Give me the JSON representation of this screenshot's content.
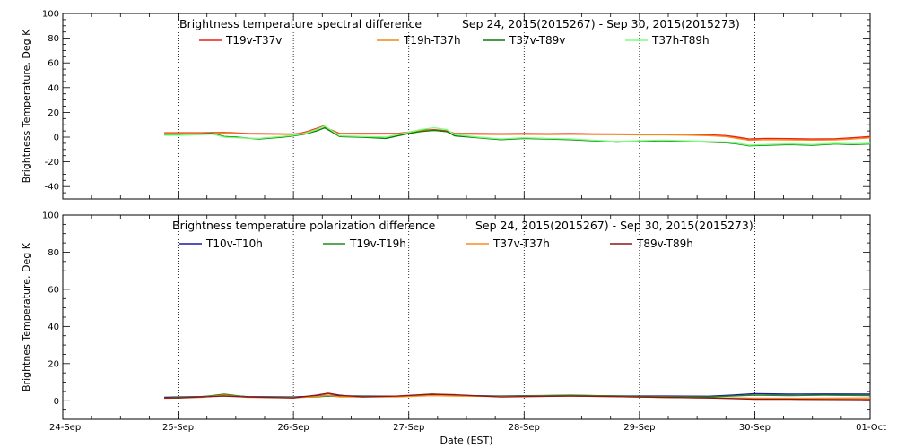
{
  "chart_data": [
    {
      "type": "line",
      "title": "Brightness temperature spectral difference",
      "date_range": "Sep 24, 2015(2015267) - Sep 30, 2015(2015273)",
      "ylabel": "Brightness Temperature, Deg K",
      "xlabel": "",
      "xlim": [
        "2015-09-24",
        "2015-10-01"
      ],
      "ylim": [
        -50,
        100
      ],
      "yticks": [
        "-40",
        "-20",
        "0",
        "20",
        "40",
        "60",
        "80",
        "100"
      ],
      "ytick_values": [
        -40,
        -20,
        0,
        20,
        40,
        60,
        80,
        100
      ],
      "grid": "vertical dotted at days",
      "legend": "top",
      "series": [
        {
          "name": "T19v-T37v",
          "color": "#e8201a",
          "x": [
            0.88,
            1.0,
            1.2,
            1.4,
            1.6,
            2.0,
            2.05,
            2.12,
            2.2,
            2.26,
            2.32,
            2.4,
            2.6,
            2.9,
            3.0,
            3.1,
            3.22,
            3.33,
            3.4,
            3.6,
            3.8,
            4.0,
            4.2,
            4.4,
            4.6,
            4.8,
            5.0,
            5.2,
            5.4,
            5.6,
            5.75,
            5.85,
            5.95,
            6.1,
            6.3,
            6.5,
            6.7,
            6.85,
            7.0
          ],
          "y": [
            3.5,
            3.5,
            3.5,
            3.8,
            3,
            2.5,
            3,
            4.5,
            7,
            9,
            6,
            3,
            3,
            3,
            4,
            5.5,
            6,
            5,
            3,
            2.8,
            2.7,
            2.8,
            2.7,
            2.8,
            2.6,
            2.5,
            2.4,
            2.4,
            2.2,
            1.8,
            1.2,
            0,
            -1.5,
            -1,
            -1.2,
            -1.5,
            -1.3,
            -0.5,
            0.5
          ]
        },
        {
          "name": "T19h-T37h",
          "color": "#f08a1a",
          "x": [
            0.88,
            1.0,
            1.2,
            1.4,
            1.6,
            2.0,
            2.05,
            2.12,
            2.2,
            2.26,
            2.32,
            2.4,
            2.6,
            2.9,
            3.0,
            3.1,
            3.22,
            3.33,
            3.4,
            3.6,
            3.8,
            4.0,
            4.2,
            4.4,
            4.6,
            4.8,
            5.0,
            5.2,
            5.4,
            5.6,
            5.75,
            5.85,
            5.95,
            6.1,
            6.3,
            6.5,
            6.7,
            6.85,
            7.0
          ],
          "y": [
            3,
            3,
            3,
            3.3,
            2.6,
            2.2,
            2.6,
            4,
            6.5,
            8.5,
            5.5,
            2.6,
            2.5,
            2.6,
            3.6,
            5,
            5.5,
            4.5,
            2.6,
            2.3,
            2.2,
            2.3,
            2.2,
            2.3,
            2.1,
            2,
            1.9,
            1.9,
            1.7,
            1.2,
            0.5,
            -1,
            -2.5,
            -2,
            -2.2,
            -2.4,
            -2.2,
            -1.5,
            -0.5
          ]
        },
        {
          "name": "T37v-T89v",
          "color": "#0a7a0a",
          "x": [
            0.88,
            1.0,
            1.2,
            1.3,
            1.4,
            1.5,
            1.7,
            1.9,
            2.0,
            2.1,
            2.2,
            2.27,
            2.32,
            2.4,
            2.6,
            2.8,
            3.0,
            3.1,
            3.22,
            3.33,
            3.4,
            3.6,
            3.8,
            4.0,
            4.2,
            4.4,
            4.6,
            4.8,
            5.0,
            5.2,
            5.4,
            5.6,
            5.75,
            5.85,
            5.95,
            6.1,
            6.3,
            6.5,
            6.7,
            6.85,
            7.0
          ],
          "y": [
            2,
            2,
            2.5,
            3,
            0.5,
            0,
            -1.5,
            0,
            1,
            2.5,
            5,
            7.5,
            5,
            0.5,
            0,
            -1,
            3,
            4.5,
            5.5,
            4.5,
            1,
            -0.5,
            -2,
            -1,
            -1.5,
            -2,
            -3,
            -4,
            -3.5,
            -3,
            -3.5,
            -4,
            -4.5,
            -5.5,
            -7,
            -6.5,
            -6,
            -6.5,
            -5.5,
            -6,
            -5.5
          ]
        },
        {
          "name": "T37h-T89h",
          "color": "#7cff7c",
          "x": [
            0.88,
            1.0,
            1.2,
            1.3,
            1.4,
            1.5,
            1.7,
            1.9,
            2.0,
            2.1,
            2.2,
            2.27,
            2.32,
            2.4,
            2.6,
            2.8,
            3.0,
            3.1,
            3.22,
            3.33,
            3.4,
            3.6,
            3.8,
            4.0,
            4.2,
            4.4,
            4.6,
            4.8,
            5.0,
            5.2,
            5.4,
            5.6,
            5.75,
            5.85,
            5.95,
            6.1,
            6.3,
            6.5,
            6.7,
            6.85,
            7.0
          ],
          "y": [
            1.5,
            1.5,
            2,
            2.5,
            0,
            -0.5,
            -1,
            0.5,
            1.5,
            3,
            6,
            9,
            6,
            1,
            0.5,
            0,
            4,
            6,
            7.5,
            6,
            2,
            0,
            -1.5,
            -0.5,
            -1,
            -1.5,
            -2.5,
            -3.5,
            -3,
            -2.5,
            -3,
            -3.5,
            -4,
            -5,
            -6.5,
            -6,
            -5.5,
            -6,
            -5,
            -5.5,
            -5
          ]
        }
      ]
    },
    {
      "type": "line",
      "title": "Brightness temperature polarization difference",
      "date_range": "Sep 24, 2015(2015267) - Sep 30, 2015(2015273)",
      "ylabel": "Brightnes Temperature, Deg K",
      "xlabel": "Date (EST)",
      "xlim": [
        "2015-09-24",
        "2015-10-01"
      ],
      "ylim": [
        -10,
        100
      ],
      "yticks": [
        "0",
        "20",
        "40",
        "60",
        "80",
        "100"
      ],
      "ytick_values": [
        0,
        20,
        40,
        60,
        80,
        100
      ],
      "xticks": [
        "24-Sep",
        "25-Sep",
        "26-Sep",
        "27-Sep",
        "28-Sep",
        "29-Sep",
        "30-Sep",
        "01-Oct"
      ],
      "grid": "vertical dotted at days",
      "legend": "top",
      "series": [
        {
          "name": "T10v-T10h",
          "color": "#1a1aa0",
          "x": [
            0.88,
            1.0,
            1.2,
            1.4,
            1.6,
            2.0,
            2.2,
            2.3,
            2.4,
            2.6,
            2.9,
            3.2,
            3.4,
            3.8,
            4.0,
            4.4,
            4.8,
            5.2,
            5.6,
            5.8,
            6.0,
            6.3,
            6.6,
            7.0
          ],
          "y": [
            1.8,
            2,
            2.2,
            3,
            2.2,
            2,
            2.5,
            3,
            2.6,
            2.5,
            2.4,
            3,
            2.8,
            2.5,
            2.7,
            2.8,
            2.6,
            2.5,
            2.4,
            3,
            3.8,
            3.5,
            3.6,
            3.5
          ]
        },
        {
          "name": "T19v-T19h",
          "color": "#1e8c1e",
          "x": [
            0.88,
            1.0,
            1.2,
            1.4,
            1.6,
            2.0,
            2.2,
            2.3,
            2.4,
            2.6,
            2.9,
            3.2,
            3.4,
            3.8,
            4.0,
            4.4,
            4.8,
            5.2,
            5.6,
            5.8,
            6.0,
            6.3,
            6.6,
            7.0
          ],
          "y": [
            1.5,
            1.8,
            2,
            3.5,
            2,
            1.8,
            2,
            2.5,
            2.2,
            2.3,
            2.2,
            3.5,
            2.8,
            2.4,
            2.5,
            3,
            2.5,
            2.2,
            2,
            2.5,
            3,
            2.8,
            3,
            2.8
          ]
        },
        {
          "name": "T37v-T37h",
          "color": "#ff8c1a",
          "x": [
            0.88,
            1.0,
            1.2,
            1.4,
            1.6,
            2.0,
            2.2,
            2.3,
            2.4,
            2.6,
            2.9,
            3.2,
            3.4,
            3.8,
            4.0,
            4.4,
            4.8,
            5.2,
            5.6,
            5.8,
            6.0,
            6.3,
            6.6,
            7.0
          ],
          "y": [
            1.3,
            1.5,
            1.8,
            3,
            1.8,
            1.6,
            2.2,
            3,
            2,
            2,
            2,
            2.8,
            2.5,
            2.2,
            2.3,
            2.5,
            2.2,
            1.8,
            1.5,
            1.5,
            1.4,
            1.3,
            1.4,
            1.5
          ]
        },
        {
          "name": "T89v-T89h",
          "color": "#8a1a1a",
          "x": [
            0.88,
            1.0,
            1.2,
            1.4,
            1.6,
            2.0,
            2.2,
            2.3,
            2.4,
            2.6,
            2.9,
            3.2,
            3.4,
            3.8,
            4.0,
            4.4,
            4.8,
            5.2,
            5.6,
            5.8,
            6.0,
            6.3,
            6.6,
            7.0
          ],
          "y": [
            1.5,
            1.5,
            2,
            2.5,
            2,
            1.5,
            3,
            4,
            3,
            2,
            2.5,
            3.5,
            3.2,
            2,
            2.2,
            2.5,
            2.2,
            1.8,
            1.5,
            1.2,
            0.8,
            0.8,
            0.7,
            0.6
          ]
        }
      ]
    }
  ]
}
